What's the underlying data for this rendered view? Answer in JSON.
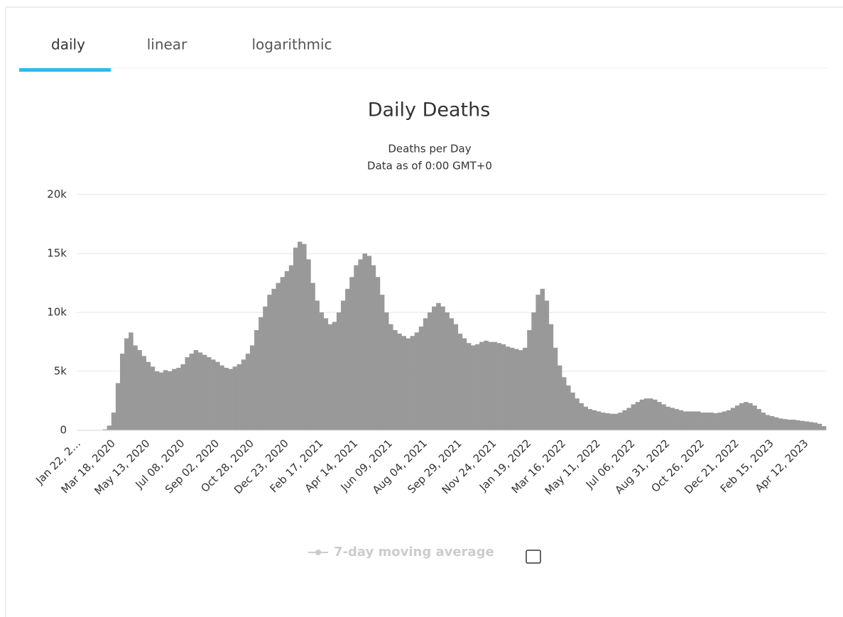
{
  "tabs": [
    "daily",
    "linear",
    "logarithmic"
  ],
  "chart_data": {
    "type": "bar",
    "title": "Daily Deaths",
    "subtitle": [
      "Deaths per Day",
      "Data as of 0:00 GMT+0"
    ],
    "legend": [
      "7-day moving average"
    ],
    "color": "#999999",
    "grid": true,
    "ylim": [
      0,
      20000
    ],
    "yticks": [
      0,
      {
        "value": 5000,
        "label": "5k"
      },
      {
        "value": 10000,
        "label": "10k"
      },
      {
        "value": 15000,
        "label": "15k"
      },
      {
        "value": 20000,
        "label": "20k"
      }
    ],
    "categories": [
      "Jan 22, 2…",
      null,
      null,
      null,
      null,
      null,
      null,
      null,
      "Mar 18, 2020",
      null,
      null,
      null,
      null,
      null,
      null,
      null,
      "May 13, 2020",
      null,
      null,
      null,
      null,
      null,
      null,
      null,
      "Jul 08, 2020",
      null,
      null,
      null,
      null,
      null,
      null,
      null,
      "Sep 02, 2020",
      null,
      null,
      null,
      null,
      null,
      null,
      null,
      "Oct 28, 2020",
      null,
      null,
      null,
      null,
      null,
      null,
      null,
      "Dec 23, 2020",
      null,
      null,
      null,
      null,
      null,
      null,
      null,
      "Feb 17, 2021",
      null,
      null,
      null,
      null,
      null,
      null,
      null,
      "Apr 14, 2021",
      null,
      null,
      null,
      null,
      null,
      null,
      null,
      "Jun 09, 2021",
      null,
      null,
      null,
      null,
      null,
      null,
      null,
      "Aug 04, 2021",
      null,
      null,
      null,
      null,
      null,
      null,
      null,
      "Sep 29, 2021",
      null,
      null,
      null,
      null,
      null,
      null,
      null,
      "Nov 24, 2021",
      null,
      null,
      null,
      null,
      null,
      null,
      null,
      "Jan 19, 2022",
      null,
      null,
      null,
      null,
      null,
      null,
      null,
      "Mar 16, 2022",
      null,
      null,
      null,
      null,
      null,
      null,
      null,
      "May 11, 2022",
      null,
      null,
      null,
      null,
      null,
      null,
      null,
      "Jul 06, 2022",
      null,
      null,
      null,
      null,
      null,
      null,
      null,
      "Aug 31, 2022",
      null,
      null,
      null,
      null,
      null,
      null,
      null,
      "Oct 26, 2022",
      null,
      null,
      null,
      null,
      null,
      null,
      null,
      "Dec 21, 2022",
      null,
      null,
      null,
      null,
      null,
      null,
      null,
      "Feb 15, 2023",
      null,
      null,
      null,
      null,
      null,
      null,
      null,
      "Apr 12, 2023",
      null,
      null,
      null,
      null
    ],
    "values": [
      0,
      0,
      0,
      0,
      0,
      20,
      80,
      400,
      1500,
      4000,
      6500,
      7800,
      8300,
      7200,
      6800,
      6300,
      5800,
      5400,
      5000,
      4900,
      5100,
      5000,
      5200,
      5300,
      5600,
      6200,
      6500,
      6800,
      6600,
      6400,
      6200,
      6000,
      5800,
      5500,
      5300,
      5200,
      5400,
      5600,
      6000,
      6500,
      7200,
      8500,
      9600,
      10500,
      11500,
      12000,
      12500,
      13000,
      13500,
      14000,
      15500,
      16000,
      15800,
      14500,
      12500,
      11000,
      10000,
      9500,
      9000,
      9200,
      10000,
      11000,
      12000,
      13000,
      14000,
      14500,
      15000,
      14800,
      14000,
      13000,
      11500,
      10000,
      9000,
      8500,
      8200,
      8000,
      7800,
      8000,
      8300,
      8800,
      9500,
      10000,
      10500,
      10800,
      10500,
      10000,
      9500,
      9000,
      8200,
      7800,
      7400,
      7200,
      7300,
      7500,
      7600,
      7500,
      7500,
      7400,
      7300,
      7100,
      7000,
      6900,
      6800,
      7000,
      8500,
      10000,
      11500,
      12000,
      11000,
      9000,
      7000,
      5500,
      4500,
      3800,
      3200,
      2700,
      2300,
      2000,
      1800,
      1700,
      1600,
      1500,
      1450,
      1400,
      1400,
      1500,
      1700,
      1900,
      2200,
      2400,
      2600,
      2700,
      2700,
      2600,
      2400,
      2200,
      2000,
      1900,
      1800,
      1700,
      1600,
      1600,
      1600,
      1600,
      1500,
      1500,
      1500,
      1450,
      1500,
      1600,
      1700,
      1900,
      2100,
      2300,
      2400,
      2300,
      2100,
      1800,
      1500,
      1300,
      1200,
      1100,
      1000,
      950,
      900,
      900,
      850,
      800,
      750,
      700,
      650,
      550,
      350
    ]
  }
}
